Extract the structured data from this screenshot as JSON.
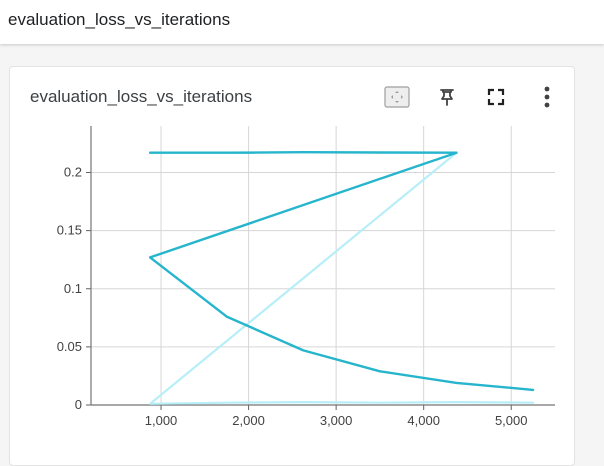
{
  "header": {
    "title": "evaluation_loss_vs_iterations"
  },
  "card": {
    "title": "evaluation_loss_vs_iterations",
    "icons": {
      "fit": "fit-domain-icon",
      "pin": "pin-icon",
      "fullscreen": "fullscreen-icon",
      "more": "more-vert-icon"
    }
  },
  "chart_data": {
    "type": "line",
    "title": "",
    "xlabel": "",
    "ylabel": "",
    "xlim": [
      200,
      5500
    ],
    "ylim": [
      0,
      0.24
    ],
    "x_ticks": [
      1000,
      2000,
      3000,
      4000,
      5000
    ],
    "x_tick_labels": [
      "1,000",
      "2,000",
      "3,000",
      "4,000",
      "5,000"
    ],
    "y_ticks": [
      0,
      0.05,
      0.1,
      0.15,
      0.2
    ],
    "y_tick_labels": [
      "0",
      "0.05",
      "0.1",
      "0.15",
      "0.2"
    ],
    "grid": true,
    "legend": "none",
    "series": [
      {
        "color": "#26b5cc",
        "points": [
          [
            875,
            0.217
          ],
          [
            1750,
            0.217
          ],
          [
            2625,
            0.2175
          ],
          [
            3500,
            0.2172
          ],
          [
            4375,
            0.217
          ],
          [
            875,
            0.127
          ],
          [
            1750,
            0.076
          ],
          [
            2625,
            0.047
          ],
          [
            3500,
            0.029
          ],
          [
            4375,
            0.019
          ],
          [
            5250,
            0.013
          ]
        ]
      },
      {
        "color": "#b7eef7",
        "points": [
          [
            4375,
            0.217
          ],
          [
            875,
            0.001
          ],
          [
            1750,
            0.002
          ],
          [
            2625,
            0.0025
          ],
          [
            3500,
            0.002
          ],
          [
            4375,
            0.0025
          ],
          [
            5250,
            0.002
          ]
        ]
      }
    ]
  }
}
